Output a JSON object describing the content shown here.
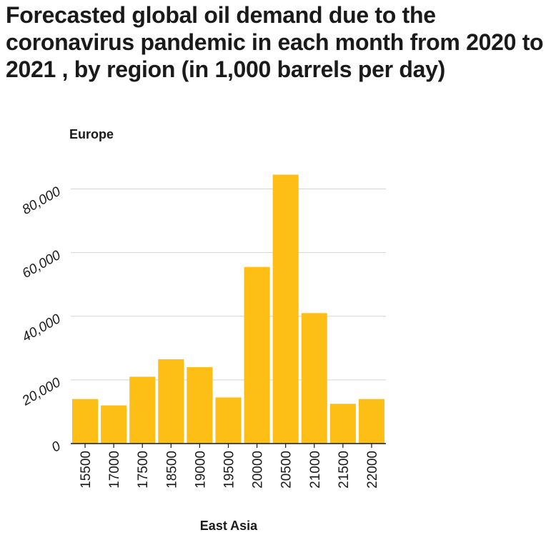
{
  "chart_data": {
    "type": "bar",
    "title": "Forecasted global oil demand due to the coronavirus pandemic in each month from 2020 to 2021 , by region (in 1,000 barrels per day)",
    "xlabel": "East Asia",
    "ylabel": "Europe",
    "categories": [
      "15500",
      "17000",
      "17500",
      "18500",
      "19000",
      "19500",
      "20000",
      "20500",
      "21000",
      "21500",
      "22000"
    ],
    "values": [
      14000,
      12000,
      21000,
      26500,
      24000,
      14500,
      55500,
      84500,
      41000,
      12500,
      14000
    ],
    "ylim": [
      0,
      90000
    ],
    "yticks": [
      0,
      20000,
      40000,
      60000,
      80000
    ],
    "ytick_labels": [
      "0",
      "20,000",
      "40,000",
      "60,000",
      "80,000"
    ],
    "grid": "horizontal",
    "bar_color": "#FDBE16",
    "grid_color": "#d4d4d4",
    "axis_color": "#1a1a1a"
  }
}
